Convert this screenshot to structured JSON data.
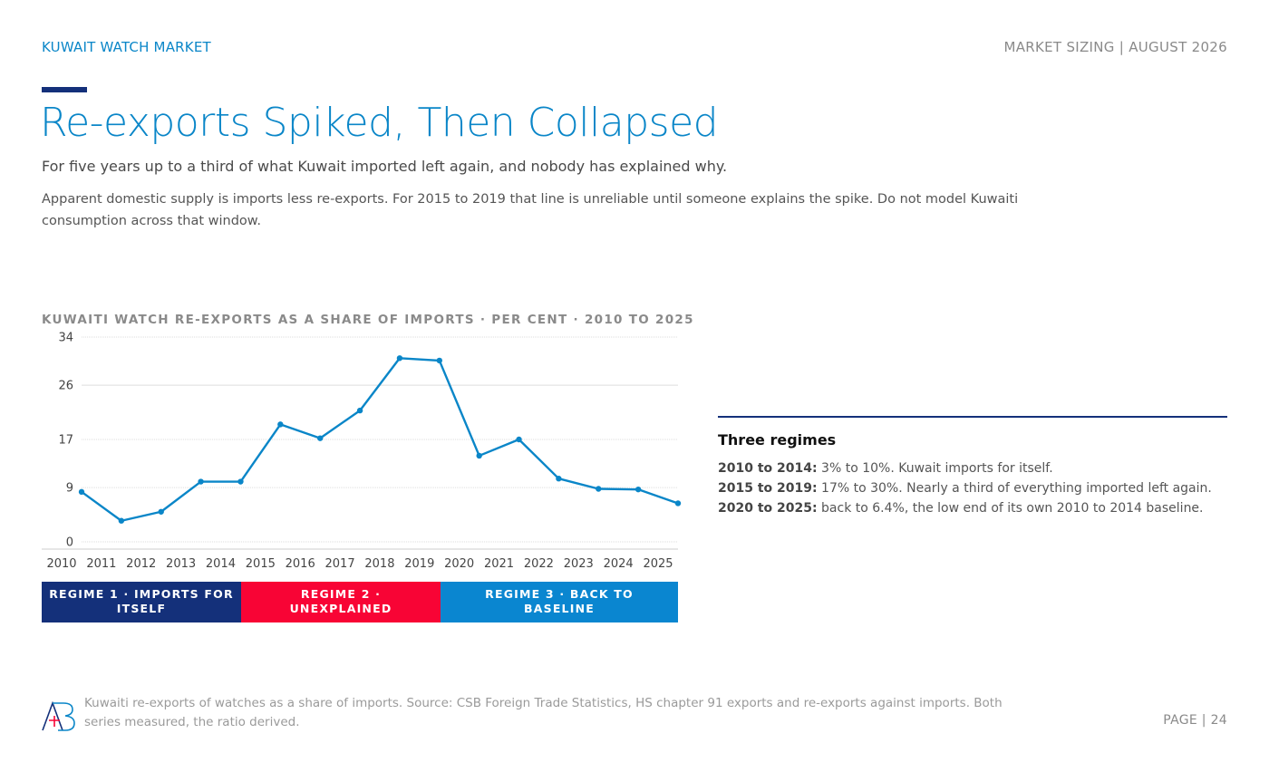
{
  "header": {
    "brand": "KUWAIT WATCH MARKET",
    "meta": "MARKET SIZING | AUGUST 2026"
  },
  "title": "Re-exports Spiked, Then Collapsed",
  "subtitle": "For five years up to a third of what Kuwait imported left again, and nobody has explained why.",
  "body": "Apparent domestic supply is imports less re-exports. For 2015 to 2019 that line is unreliable until someone explains the spike. Do not model Kuwaiti consumption across that window.",
  "chart_data": {
    "type": "line",
    "title": "KUWAITI WATCH RE-EXPORTS AS A SHARE OF IMPORTS · PER CENT · 2010 TO 2025",
    "x": [
      "2010",
      "2011",
      "2012",
      "2013",
      "2014",
      "2015",
      "2016",
      "2017",
      "2018",
      "2019",
      "2020",
      "2021",
      "2022",
      "2023",
      "2024",
      "2025"
    ],
    "series": [
      {
        "values": [
          8.3,
          3.5,
          5.0,
          10.0,
          10.0,
          19.5,
          17.2,
          21.8,
          30.5,
          30.1,
          14.3,
          17.0,
          10.5,
          8.8,
          8.7,
          6.4
        ]
      }
    ],
    "yticks": [
      0,
      9,
      17,
      26,
      34
    ],
    "ylim": [
      0,
      34
    ],
    "grid": true,
    "color": "#0a86c8",
    "regimes": [
      {
        "label": "REGIME 1 · IMPORTS FOR ITSELF",
        "color": "#14307a"
      },
      {
        "label": "REGIME 2 · UNEXPLAINED",
        "color": "#f80435"
      },
      {
        "label": "REGIME 3 · BACK TO BASELINE",
        "color": "#0a86d0"
      }
    ]
  },
  "panel": {
    "title": "Three regimes",
    "items": [
      {
        "period": "2010 to 2014:",
        "text": " 3% to 10%. Kuwait imports for itself."
      },
      {
        "period": "2015 to 2019:",
        "text": " 17% to 30%. Nearly a third of everything imported left again."
      },
      {
        "period": "2020 to 2025:",
        "text": " back to 6.4%, the low end of its own 2010 to 2014 baseline."
      }
    ]
  },
  "footer": {
    "note": "Kuwaiti re-exports of watches as a share of imports. Source: CSB Foreign Trade Statistics, HS chapter 91 exports and re-exports against imports. Both series measured, the ratio derived.",
    "page": "PAGE | 24",
    "logo_colors": [
      "#14307a",
      "#0a86c8",
      "#f80435"
    ]
  }
}
